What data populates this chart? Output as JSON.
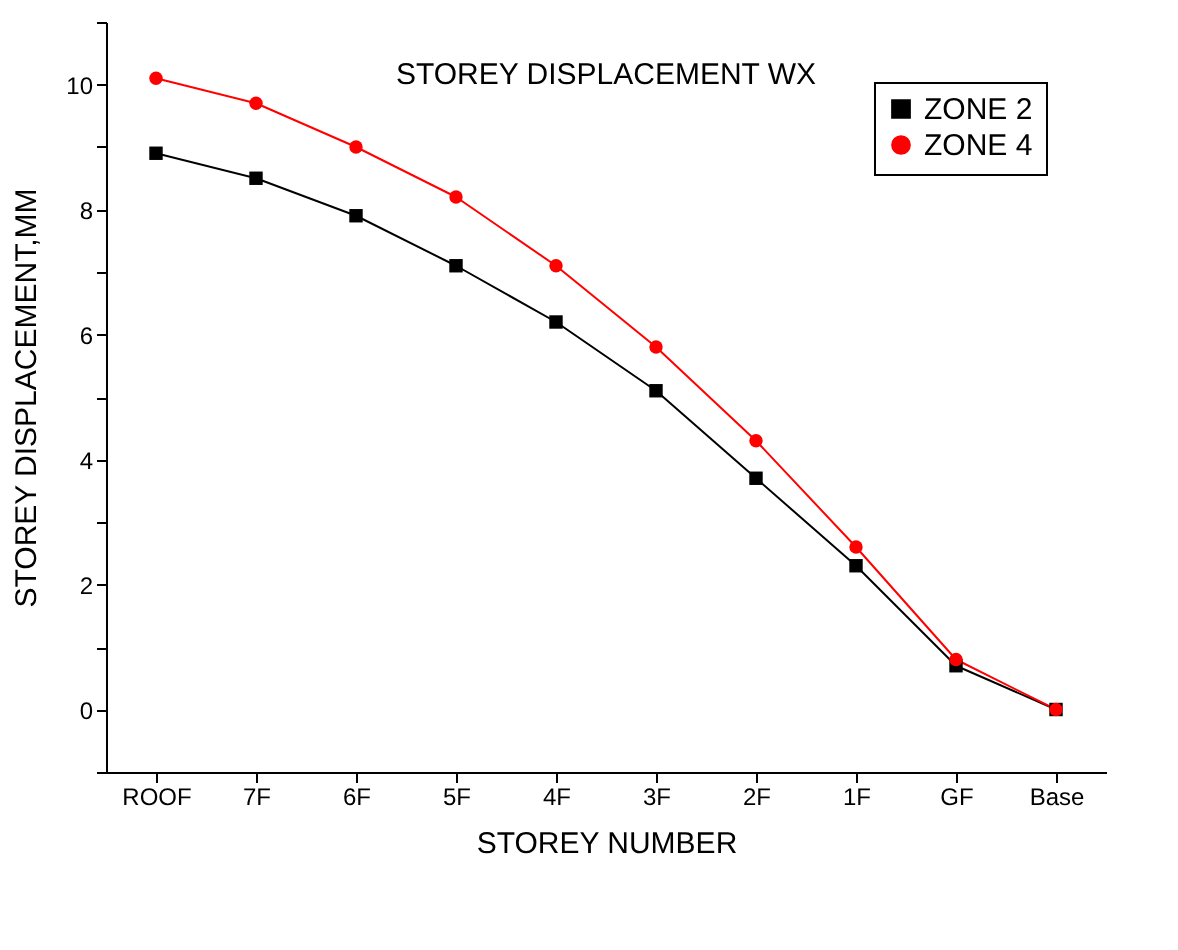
{
  "chart_data": {
    "type": "line",
    "title": "STOREY DISPLACEMENT WX",
    "xlabel": "STOREY NUMBER",
    "ylabel": "STOREY DISPLACEMENT,MM",
    "categories": [
      "ROOF",
      "7F",
      "6F",
      "5F",
      "4F",
      "3F",
      "2F",
      "1F",
      "GF",
      "Base"
    ],
    "series": [
      {
        "name": "ZONE 2",
        "color": "#000000",
        "marker": "square",
        "values": [
          8.9,
          8.5,
          7.9,
          7.1,
          6.2,
          5.1,
          3.7,
          2.3,
          0.7,
          0
        ]
      },
      {
        "name": "ZONE 4",
        "color": "#ff0000",
        "marker": "circle",
        "values": [
          10.1,
          9.7,
          9.0,
          8.2,
          7.1,
          5.8,
          4.3,
          2.6,
          0.8,
          0
        ]
      }
    ],
    "ylim": [
      -1,
      11
    ],
    "yticks": [
      {
        "value": -1,
        "label": null
      },
      0,
      {
        "value": 1,
        "label": null
      },
      2,
      {
        "value": 3,
        "label": null
      },
      4,
      {
        "value": 5,
        "label": null
      },
      6,
      {
        "value": 7,
        "label": null
      },
      8,
      {
        "value": 9,
        "label": null
      },
      10,
      {
        "value": 11,
        "label": null
      }
    ],
    "legend": "top right",
    "grid": false,
    "line_style": "solid"
  }
}
